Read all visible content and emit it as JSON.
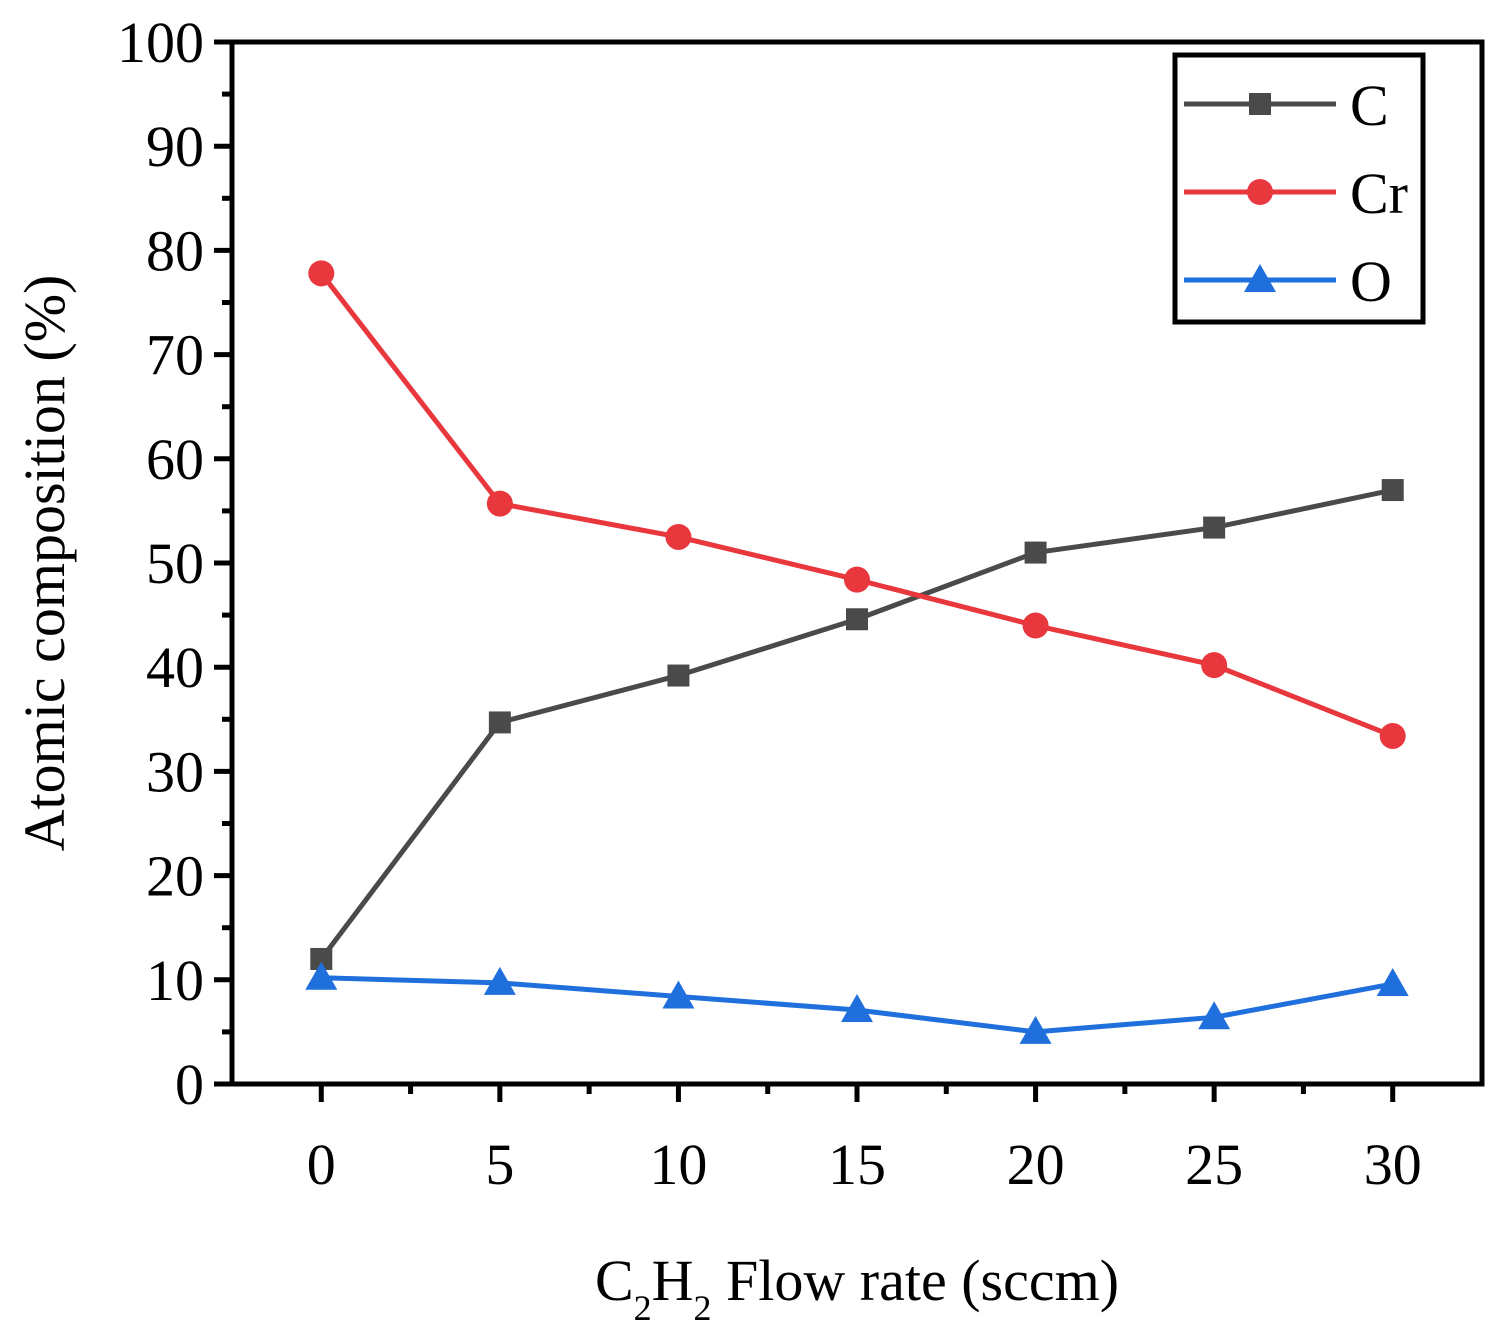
{
  "chart_data": {
    "type": "line",
    "title": "",
    "xlabel": {
      "prefix": "C",
      "sub1": "2",
      "mid": "H",
      "sub2": "2",
      "suffix": " Flow rate (sccm)"
    },
    "ylabel": "Atomic composition (%)",
    "xlim": [
      -2.5,
      32.5
    ],
    "ylim": [
      0,
      100
    ],
    "x": [
      0,
      5,
      10,
      15,
      20,
      25,
      30
    ],
    "xticks": [
      0,
      5,
      10,
      15,
      20,
      25,
      30
    ],
    "xtick_labels": [
      "0",
      "5",
      "10",
      "15",
      "20",
      "25",
      "30"
    ],
    "yticks": [
      0,
      10,
      20,
      30,
      40,
      50,
      60,
      70,
      80,
      90,
      100
    ],
    "ytick_labels": [
      "0",
      "10",
      "20",
      "30",
      "40",
      "50",
      "60",
      "70",
      "80",
      "90",
      "100"
    ],
    "grid": false,
    "legend_position": "top-right",
    "series": [
      {
        "name": "C",
        "marker": "square",
        "color": "#4a4a4a",
        "values": [
          12.0,
          34.7,
          39.2,
          44.6,
          51.0,
          53.4,
          57.0
        ]
      },
      {
        "name": "Cr",
        "marker": "circle",
        "color": "#e8383d",
        "values": [
          77.8,
          55.7,
          52.5,
          48.4,
          44.0,
          40.2,
          33.4
        ]
      },
      {
        "name": "O",
        "marker": "triangle",
        "color": "#1f6fdc",
        "values": [
          10.2,
          9.7,
          8.4,
          7.1,
          5.0,
          6.4,
          9.6
        ]
      }
    ]
  }
}
